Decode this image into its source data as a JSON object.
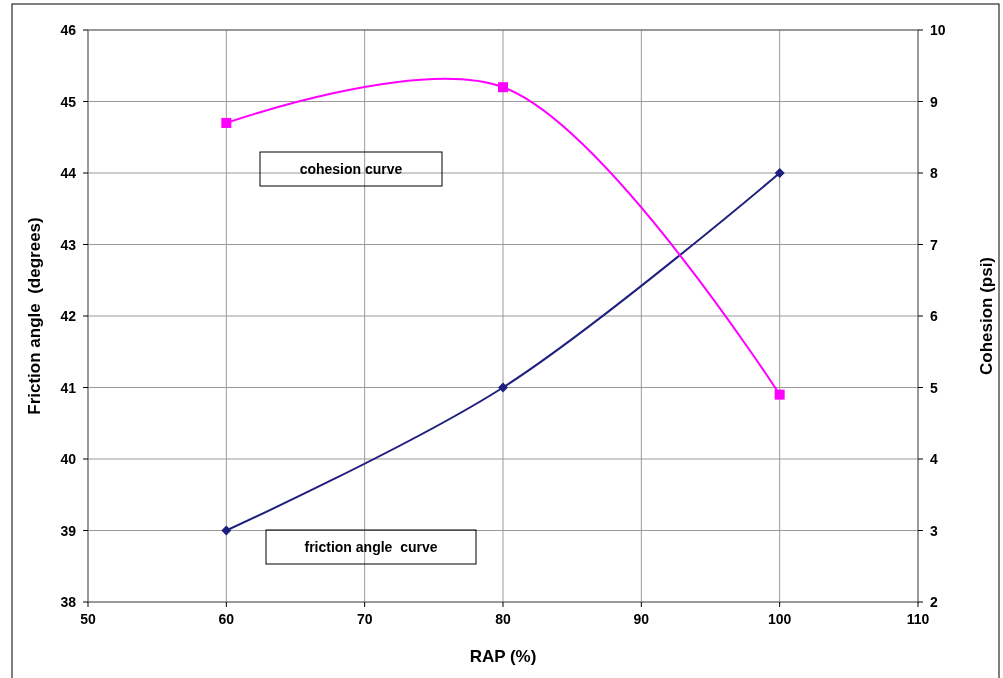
{
  "chart_data": {
    "type": "line",
    "xlabel": "RAP (%)",
    "ylabel": "Friction angle  (degrees)",
    "y2label": "Cohesion (psi)",
    "xlim": [
      50,
      110
    ],
    "xticks": [
      50,
      60,
      70,
      80,
      90,
      100,
      110
    ],
    "ylim": [
      38,
      46
    ],
    "yticks": [
      38,
      39,
      40,
      41,
      42,
      43,
      44,
      45,
      46
    ],
    "y2lim": [
      2,
      10
    ],
    "y2ticks": [
      2,
      3,
      4,
      5,
      6,
      7,
      8,
      9,
      10
    ],
    "grid": true,
    "x": [
      60,
      80,
      100
    ],
    "series": [
      {
        "color": "#1f1f80",
        "values": [
          39,
          41,
          44
        ],
        "marker": "diamond"
      },
      {
        "color": "#ff00ff",
        "values": [
          8.7,
          9.2,
          4.9
        ],
        "axis": "y2",
        "marker": "square"
      }
    ],
    "annotations": [
      "cohesion curve",
      "friction angle  curve"
    ]
  }
}
